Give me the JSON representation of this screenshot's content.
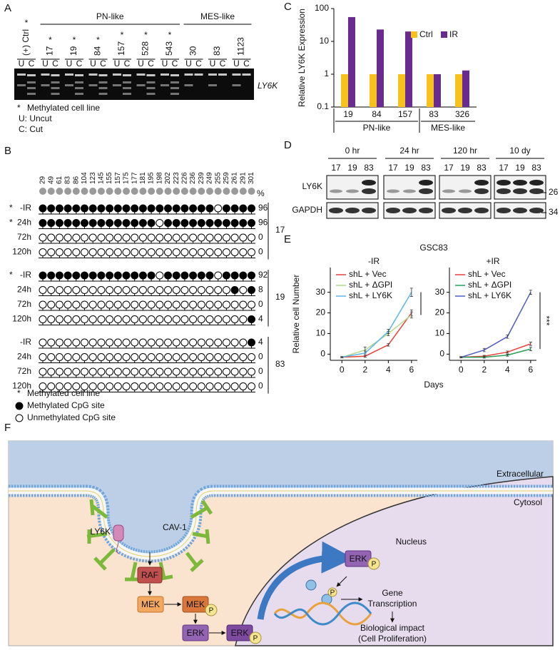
{
  "panel_labels": [
    "A",
    "B",
    "C",
    "D",
    "E",
    "F"
  ],
  "gel": {
    "lanes": [
      "(+) Ctrl",
      "17",
      "19",
      "84",
      "157",
      "528",
      "543",
      "30",
      "83",
      "1123"
    ],
    "methylated": [
      true,
      true,
      true,
      true,
      true,
      true,
      true,
      false,
      false,
      false
    ],
    "uc": [
      "U",
      "C"
    ],
    "groups": [
      {
        "name": "PN-like",
        "from": "17",
        "to": "543"
      },
      {
        "name": "MES-like",
        "from": "30",
        "to": "1123"
      }
    ],
    "marker": "LY6K",
    "legend": [
      {
        "symbol": "*",
        "text": "Methylated cell line"
      },
      {
        "text": "U: Uncut"
      },
      {
        "text": "C: Cut"
      }
    ]
  },
  "methylation": {
    "sites": [
      "29",
      "49",
      "61",
      "83",
      "86",
      "104",
      "123",
      "145",
      "155",
      "157",
      "175",
      "177",
      "181",
      "195",
      "198",
      "202",
      "223",
      "226",
      "236",
      "239",
      "249",
      "255",
      "259",
      "261",
      "291",
      "301"
    ],
    "percent_label": "%",
    "groups": [
      {
        "name": "17",
        "rows": [
          {
            "label": "-IR",
            "methylated": true,
            "percent": 96,
            "sites": [
              1,
              1,
              1,
              1,
              1,
              1,
              1,
              1,
              1,
              1,
              1,
              1,
              1,
              1,
              1,
              1,
              1,
              1,
              1,
              1,
              1,
              0,
              1,
              1,
              1,
              1
            ]
          },
          {
            "label": "24h",
            "methylated": true,
            "percent": 96,
            "sites": [
              1,
              1,
              1,
              1,
              1,
              1,
              1,
              1,
              1,
              1,
              1,
              1,
              1,
              1,
              0,
              1,
              1,
              1,
              1,
              1,
              1,
              1,
              1,
              1,
              1,
              1
            ]
          },
          {
            "label": "72h",
            "methylated": false,
            "percent": 0,
            "sites": [
              0,
              0,
              0,
              0,
              0,
              0,
              0,
              0,
              0,
              0,
              0,
              0,
              0,
              0,
              0,
              0,
              0,
              0,
              0,
              0,
              0,
              0,
              0,
              0,
              0,
              0
            ]
          },
          {
            "label": "120h",
            "methylated": false,
            "percent": 0,
            "sites": [
              0,
              0,
              0,
              0,
              0,
              0,
              0,
              0,
              0,
              0,
              0,
              0,
              0,
              0,
              0,
              0,
              0,
              0,
              0,
              0,
              0,
              0,
              0,
              0,
              0,
              0
            ]
          }
        ]
      },
      {
        "name": "19",
        "rows": [
          {
            "label": "-IR",
            "methylated": true,
            "percent": 92,
            "sites": [
              1,
              1,
              1,
              1,
              1,
              1,
              1,
              1,
              1,
              1,
              1,
              1,
              1,
              1,
              0,
              1,
              1,
              1,
              1,
              1,
              1,
              0,
              1,
              1,
              1,
              1
            ]
          },
          {
            "label": "24h",
            "methylated": false,
            "percent": 8,
            "sites": [
              0,
              0,
              0,
              0,
              0,
              0,
              0,
              0,
              0,
              0,
              0,
              0,
              0,
              0,
              0,
              0,
              0,
              0,
              0,
              0,
              0,
              0,
              0,
              1,
              0,
              1
            ]
          },
          {
            "label": "72h",
            "methylated": false,
            "percent": 0,
            "sites": [
              0,
              0,
              0,
              0,
              0,
              0,
              0,
              0,
              0,
              0,
              0,
              0,
              0,
              0,
              0,
              0,
              0,
              0,
              0,
              0,
              0,
              0,
              0,
              0,
              0,
              0
            ]
          },
          {
            "label": "120h",
            "methylated": false,
            "percent": 4,
            "sites": [
              0,
              0,
              0,
              0,
              0,
              0,
              0,
              0,
              0,
              0,
              0,
              0,
              0,
              0,
              0,
              0,
              0,
              0,
              0,
              0,
              0,
              0,
              0,
              0,
              0,
              1
            ]
          }
        ]
      },
      {
        "name": "83",
        "rows": [
          {
            "label": "-IR",
            "methylated": false,
            "percent": 4,
            "sites": [
              0,
              0,
              0,
              0,
              0,
              0,
              0,
              0,
              0,
              0,
              0,
              0,
              0,
              0,
              0,
              0,
              0,
              0,
              0,
              0,
              0,
              0,
              0,
              0,
              0,
              1
            ]
          },
          {
            "label": "24h",
            "methylated": false,
            "percent": 0,
            "sites": [
              0,
              0,
              0,
              0,
              0,
              0,
              0,
              0,
              0,
              0,
              0,
              0,
              0,
              0,
              0,
              0,
              0,
              0,
              0,
              0,
              0,
              0,
              0,
              0,
              0,
              0
            ]
          },
          {
            "label": "72h",
            "methylated": false,
            "percent": 0,
            "sites": [
              0,
              0,
              0,
              0,
              0,
              0,
              0,
              0,
              0,
              0,
              0,
              0,
              0,
              0,
              0,
              0,
              0,
              0,
              0,
              0,
              0,
              0,
              0,
              0,
              0,
              0
            ]
          },
          {
            "label": "120h",
            "methylated": false,
            "percent": 0,
            "sites": [
              0,
              0,
              0,
              0,
              0,
              0,
              0,
              0,
              0,
              0,
              0,
              0,
              0,
              0,
              0,
              0,
              0,
              0,
              0,
              0,
              0,
              0,
              0,
              0,
              0,
              0
            ]
          }
        ]
      }
    ],
    "legend": [
      {
        "symbol": "*",
        "text": "Methylated cell line"
      },
      {
        "text": "Methylated CpG site"
      },
      {
        "text": "Unmethylated CpG site"
      }
    ]
  },
  "chart_data": [
    {
      "type": "bar",
      "y_label": "Relative LY6K Expression",
      "categories": [
        "19",
        "84",
        "157",
        "83",
        "326"
      ],
      "groups": [
        {
          "name": "PN-like",
          "from": "19",
          "to": "157"
        },
        {
          "name": "MES-like",
          "from": "83",
          "to": "326"
        }
      ],
      "series": [
        {
          "name": "Ctrl",
          "color": "#f6c21b",
          "values": [
            1,
            1,
            1,
            1,
            1
          ]
        },
        {
          "name": "IR",
          "color": "#6a2b90",
          "values": [
            55,
            23,
            20,
            1,
            1.3
          ]
        }
      ],
      "log_scale": true,
      "ylim": [
        0.1,
        100
      ],
      "yticks": [
        0.1,
        1,
        10,
        100
      ],
      "legend": "top-right"
    },
    {
      "type": "line",
      "title": "-IR",
      "supertitle": "GSC83",
      "y_label": "Relative cell Number",
      "x_label": "Days",
      "x": [
        0,
        2,
        4,
        6
      ],
      "xlim": [
        -1,
        6.5
      ],
      "xticks": [
        0,
        2,
        4,
        6
      ],
      "ylim": [
        -3,
        42
      ],
      "yticks": [
        0,
        10,
        20,
        30
      ],
      "legend": "top-left",
      "series": [
        {
          "name": "shL + Vec",
          "color": "#e8403a",
          "values": [
            -1.5,
            -1,
            4.5,
            20
          ],
          "errors": [
            0.3,
            0.5,
            0.6,
            1.5
          ]
        },
        {
          "name": "shL + ΔGPI",
          "color": "#b3d88a",
          "values": [
            -1.5,
            2,
            10,
            19
          ],
          "errors": [
            0.3,
            1.5,
            1,
            1.5
          ]
        },
        {
          "name": "shL + LY6K",
          "color": "#59b6ee",
          "values": [
            -1.5,
            0.5,
            11,
            30
          ],
          "errors": [
            0.3,
            1,
            1,
            2
          ]
        }
      ]
    },
    {
      "type": "line",
      "title": "+IR",
      "annotation": "***",
      "x": [
        0,
        2,
        4,
        6
      ],
      "xlim": [
        -1,
        6.5
      ],
      "xticks": [
        0,
        2,
        4,
        6
      ],
      "ylim": [
        -3,
        42
      ],
      "yticks": [
        0,
        10,
        20,
        30
      ],
      "legend": "top-left",
      "series": [
        {
          "name": "shL + Vec",
          "color": "#e8403a",
          "values": [
            -1.5,
            -1,
            1,
            5
          ],
          "errors": [
            0.3,
            0.4,
            0.5,
            0.8
          ]
        },
        {
          "name": "shL + ΔGPI",
          "color": "#2a9d58",
          "values": [
            -1.5,
            -1.5,
            -0.5,
            2.5
          ],
          "errors": [
            0.3,
            0.4,
            0.5,
            0.8
          ]
        },
        {
          "name": "shL + LY6K",
          "color": "#4c5ec0",
          "values": [
            -1.5,
            2,
            8.5,
            30
          ],
          "errors": [
            0.3,
            0.8,
            0.8,
            1
          ]
        }
      ]
    }
  ],
  "western": {
    "times": [
      "0 hr",
      "24 hr",
      "120 hr",
      "10 dy"
    ],
    "lanes": [
      "17",
      "19",
      "83"
    ],
    "proteins": [
      "LY6K",
      "GAPDH"
    ],
    "markers": [
      "26",
      "34"
    ]
  },
  "diagram": {
    "extracellular": "Extracellular",
    "cytosol": "Cytosol",
    "nucleus": "Nucleus",
    "cav1": "CAV-1",
    "ly6k": "LY6K",
    "raf": "RAF",
    "mek": "MEK",
    "erk": "ERK",
    "p": "P",
    "gene_transcription": [
      "Gene",
      "Transcription"
    ],
    "impact": [
      "Biological impact",
      "(Cell Proliferation)"
    ]
  }
}
